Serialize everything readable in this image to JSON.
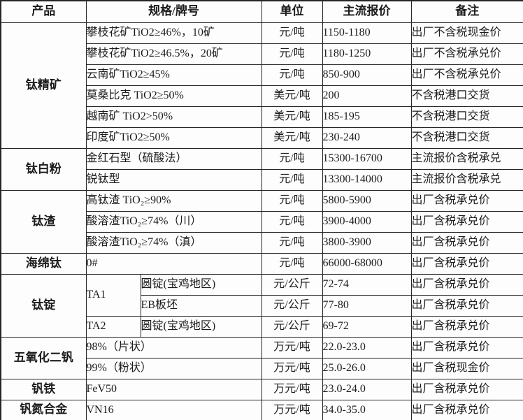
{
  "chart_data": {
    "type": "table",
    "columns": [
      "产品",
      "规格/牌号",
      "单位",
      "主流报价",
      "备注"
    ],
    "groups": [
      {
        "product": "钛精矿",
        "rows": [
          {
            "spec": "攀枝花矿TiO2≥46%，10矿",
            "unit": "元/吨",
            "price": "1150-1180",
            "note": "出厂不含税现金价"
          },
          {
            "spec": "攀枝花矿TiO2≥46.5%，20矿",
            "unit": "元/吨",
            "price": "1180-1250",
            "note": "出厂不含税承兑价"
          },
          {
            "spec": "云南矿TiO2≥45%",
            "unit": "元/吨",
            "price": "850-900",
            "note": "出厂不含税承兑价"
          },
          {
            "spec": "莫桑比克 TiO2≥50%",
            "unit": "美元/吨",
            "price": "200",
            "note": "不含税港口交货"
          },
          {
            "spec": "越南矿 TiO2>50%",
            "unit": "美元/吨",
            "price": "185-195",
            "note": "不含税港口交货"
          },
          {
            "spec": "印度矿TiO2≥50%",
            "unit": "美元/吨",
            "price": "230-240",
            "note": "不含税港口交货"
          }
        ]
      },
      {
        "product": "钛白粉",
        "rows": [
          {
            "spec": "金红石型（硫酸法）",
            "unit": "元/吨",
            "price": "15300-16700",
            "note": "主流报价含税承兑"
          },
          {
            "spec": "锐钛型",
            "unit": "元/吨",
            "price": "13300-14000",
            "note": "主流报价含税承兑"
          }
        ]
      },
      {
        "product": "钛渣",
        "rows": [
          {
            "spec": "高钛渣 TiO₂≥90%",
            "unit": "元/吨",
            "price": "5800-5900",
            "note": "出厂含税承兑价"
          },
          {
            "spec": "酸溶渣TiO₂≥74%（川）",
            "unit": "元/吨",
            "price": "3900-4000",
            "note": "出厂含税承兑价"
          },
          {
            "spec": "酸溶渣TiO₂≥74%（滇）",
            "unit": "元/吨",
            "price": "3800-3900",
            "note": "出厂含税承兑价"
          }
        ]
      },
      {
        "product": "海绵钛",
        "rows": [
          {
            "spec": "0#",
            "unit": "元/吨",
            "price": "66000-68000",
            "note": "出厂含税承兑价"
          }
        ]
      },
      {
        "product": "钛锭",
        "rows": [
          {
            "grade": "TA1",
            "grade_rowspan": 2,
            "spec": "圆锭(宝鸡地区)",
            "unit": "元/公斤",
            "price": "72-74",
            "note": "出厂含税承兑价"
          },
          {
            "spec": "EB板坯",
            "unit": "元/公斤",
            "price": "77-80",
            "note": "出厂含税承兑价"
          },
          {
            "grade": "TA2",
            "grade_rowspan": 1,
            "spec": "圆锭(宝鸡地区)",
            "unit": "元/公斤",
            "price": "69-72",
            "note": "出厂含税承兑价"
          }
        ]
      },
      {
        "product": "五氧化二钒",
        "rows": [
          {
            "spec": "98%（片状）",
            "unit": "万元/吨",
            "price": "22.0-23.0",
            "note": "出厂含税承兑价"
          },
          {
            "spec": "99%（粉状）",
            "unit": "万元/吨",
            "price": "25.0-26.0",
            "note": "出厂含税现金价"
          }
        ]
      },
      {
        "product": "钒铁",
        "rows": [
          {
            "spec": "FeV50",
            "unit": "万元/吨",
            "price": "23.0-24.0",
            "note": "出厂含税承兑价"
          }
        ]
      },
      {
        "product": "钒氮合金",
        "rows": [
          {
            "spec": "VN16",
            "unit": "万元/吨",
            "price": "34.0-35.0",
            "note": "出厂含税承兑价"
          }
        ]
      }
    ]
  }
}
